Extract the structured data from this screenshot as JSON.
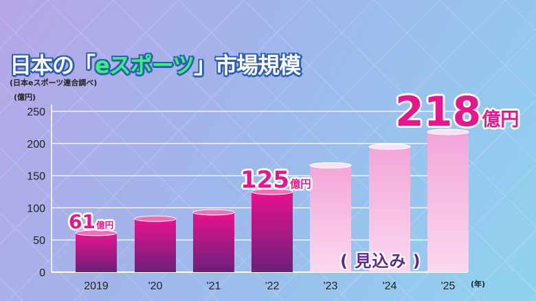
{
  "title_prefix": "日本の「",
  "title_highlight": "eスポーツ",
  "title_suffix": "」市場規模",
  "source_note": "(日本eスポーツ連合調べ)",
  "y_unit": "(億円)",
  "x_unit": "(年)",
  "forecast_label": "( 見込み )",
  "callouts": [
    {
      "value": "61",
      "unit": "億円"
    },
    {
      "value": "125",
      "unit": "億円"
    },
    {
      "value": "218",
      "unit": "億円"
    }
  ],
  "chart_data": {
    "type": "bar",
    "categories": [
      "2019",
      "'20",
      "'21",
      "'22",
      "'23",
      "'24",
      "'25"
    ],
    "values": [
      61,
      83,
      93,
      125,
      166,
      195,
      218
    ],
    "forecast": [
      false,
      false,
      false,
      false,
      true,
      true,
      true
    ],
    "yticks": [
      0,
      50,
      100,
      150,
      200,
      250
    ],
    "ylim": [
      0,
      250
    ],
    "grid": true,
    "colors": {
      "actual_top": "#e8138d",
      "actual_bottom": "#6b1f7c",
      "forecast_top": "#f2a6d8",
      "forecast_bottom": "#fbd8ee"
    }
  }
}
